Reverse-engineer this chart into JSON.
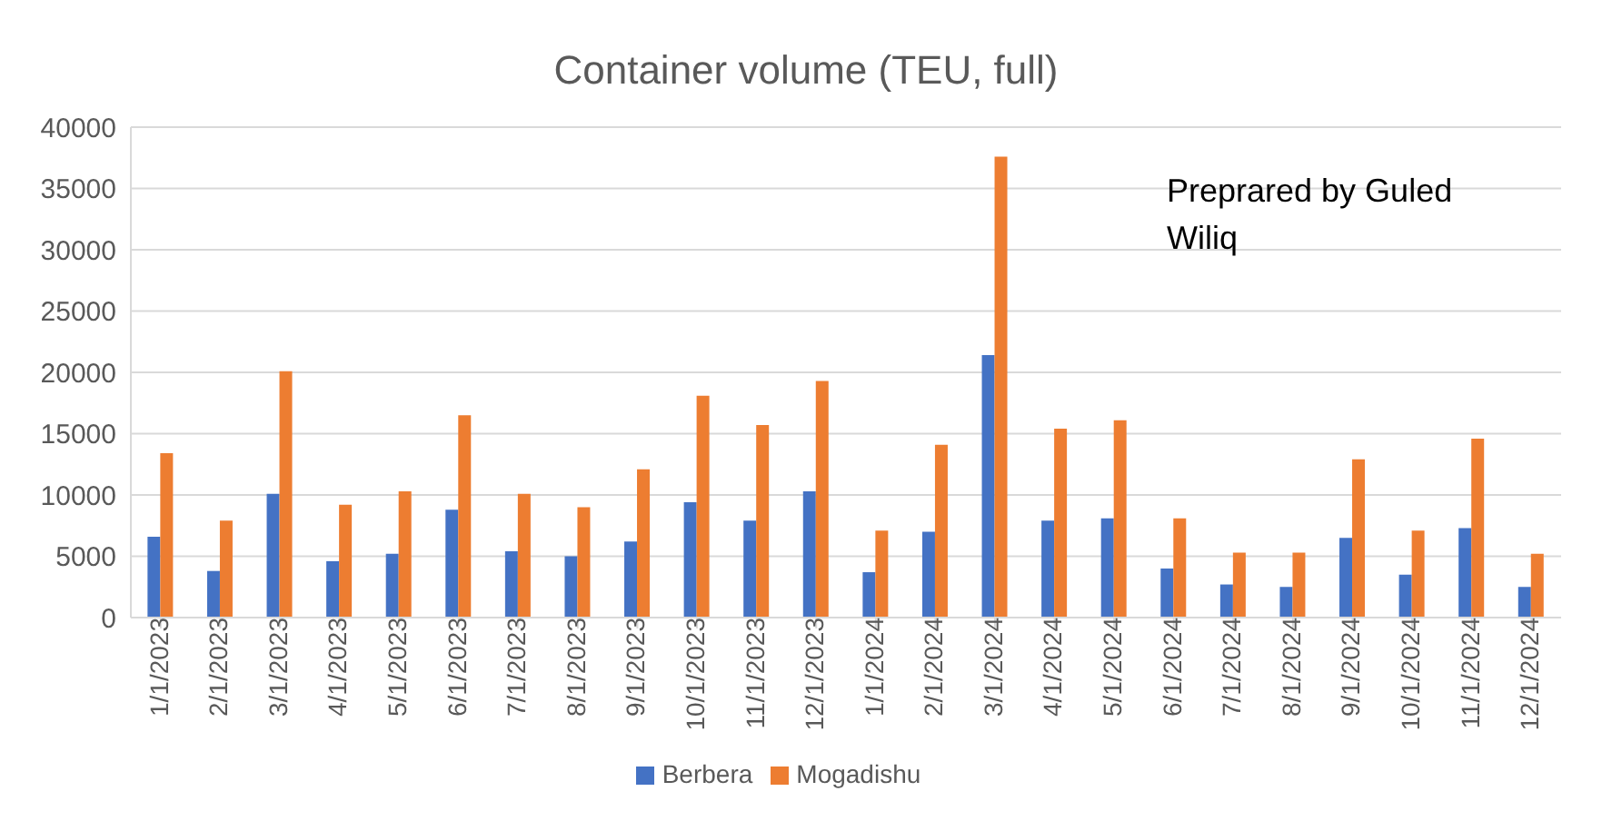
{
  "chart_data": {
    "type": "bar",
    "title": "Container volume (TEU, full)",
    "categories": [
      "1/1/2023",
      "2/1/2023",
      "3/1/2023",
      "4/1/2023",
      "5/1/2023",
      "6/1/2023",
      "7/1/2023",
      "8/1/2023",
      "9/1/2023",
      "10/1/2023",
      "11/1/2023",
      "12/1/2023",
      "1/1/2024",
      "2/1/2024",
      "3/1/2024",
      "4/1/2024",
      "5/1/2024",
      "6/1/2024",
      "7/1/2024",
      "8/1/2024",
      "9/1/2024",
      "10/1/2024",
      "11/1/2024",
      "12/1/2024"
    ],
    "series": [
      {
        "name": "Berbera",
        "color": "#4472c4",
        "values": [
          6600,
          3800,
          10100,
          4600,
          5200,
          8800,
          5400,
          5000,
          6200,
          9400,
          7900,
          10300,
          3700,
          7000,
          21400,
          7900,
          8100,
          4000,
          2700,
          2500,
          6500,
          3500,
          7300,
          2500
        ]
      },
      {
        "name": "Mogadishu",
        "color": "#ed7d31",
        "values": [
          13400,
          7900,
          20100,
          9200,
          10300,
          16500,
          10100,
          9000,
          12100,
          18100,
          15700,
          19300,
          7100,
          14100,
          37600,
          15400,
          16100,
          8100,
          5300,
          5300,
          12900,
          7100,
          14600,
          5200
        ]
      }
    ],
    "ylim": [
      0,
      40000
    ],
    "yticks": [
      0,
      5000,
      10000,
      15000,
      20000,
      25000,
      30000,
      35000,
      40000
    ],
    "grid": "y",
    "legend": "bottom",
    "annotations": [
      "Preprared by Guled Wiliq"
    ]
  }
}
